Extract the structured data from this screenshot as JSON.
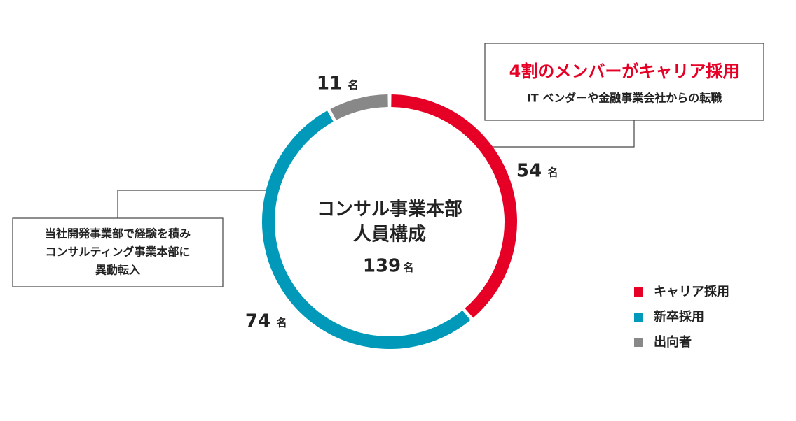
{
  "chart_data": {
    "type": "donut",
    "center_title": [
      "コンサル事業本部",
      "人員構成"
    ],
    "total": 139,
    "unit": "名",
    "series": [
      {
        "name": "キャリア採用",
        "color": "#e60026",
        "values": [
          54
        ]
      },
      {
        "name": "新卒採用",
        "color": "#0099b9",
        "values": [
          74
        ]
      },
      {
        "name": "出向者",
        "color": "#888888",
        "values": [
          11
        ]
      }
    ],
    "annotations": [
      {
        "title": "4割のメンバーがキャリア採用",
        "text": "IT ベンダーや金融事業会社からの転職"
      },
      {
        "lines": [
          "当社開発事業部で経験を積み",
          "コンサルティング事業本部に",
          "異動転入"
        ]
      }
    ],
    "legend": "bottom-right"
  }
}
